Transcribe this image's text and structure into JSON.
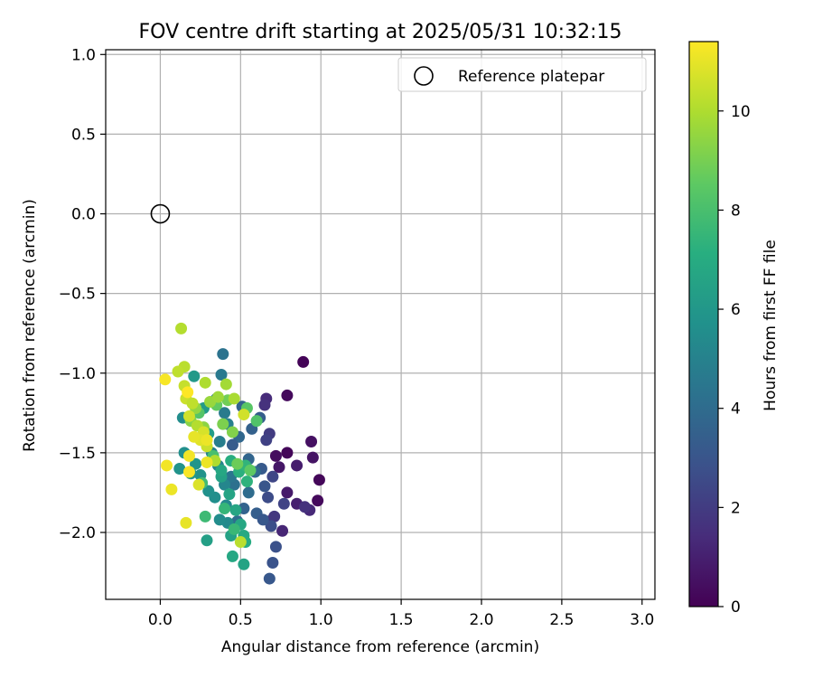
{
  "chart_data": {
    "type": "scatter",
    "title": "FOV centre drift starting at 2025/05/31 10:32:15",
    "xlabel": "Angular distance from reference (arcmin)",
    "ylabel": "Rotation from reference (arcmin)",
    "xlim": [
      -0.34,
      3.08
    ],
    "ylim": [
      -2.42,
      1.03
    ],
    "xticks": [
      0.0,
      0.5,
      1.0,
      1.5,
      2.0,
      2.5,
      3.0
    ],
    "xtick_labels": [
      "0.0",
      "0.5",
      "1.0",
      "1.5",
      "2.0",
      "2.5",
      "3.0"
    ],
    "yticks": [
      1.0,
      0.5,
      0.0,
      -0.5,
      -1.0,
      -1.5,
      -2.0
    ],
    "ytick_labels": [
      "1.0",
      "0.5",
      "0.0",
      "−0.5",
      "−1.0",
      "−1.5",
      "−2.0"
    ],
    "grid": true,
    "legend": {
      "location": "upper right",
      "entries": [
        "Reference platepar"
      ]
    },
    "reference_point": {
      "x": 0.0,
      "y": 0.0,
      "marker": "hollow-circle"
    },
    "colorbar": {
      "label": "Hours from first FF file",
      "colormap": "viridis",
      "range": [
        0,
        11.4
      ],
      "ticks": [
        0,
        2,
        4,
        6,
        8,
        10
      ],
      "tick_labels": [
        "0",
        "2",
        "4",
        "6",
        "8",
        "10"
      ]
    },
    "points": [
      [
        0.89,
        -0.93,
        0.1
      ],
      [
        0.79,
        -1.14,
        0.3
      ],
      [
        0.99,
        -1.67,
        0.2
      ],
      [
        0.98,
        -1.8,
        0.3
      ],
      [
        0.94,
        -1.43,
        0.5
      ],
      [
        0.95,
        -1.53,
        0.6
      ],
      [
        0.79,
        -1.5,
        0.2
      ],
      [
        0.72,
        -1.52,
        0.4
      ],
      [
        0.74,
        -1.59,
        0.7
      ],
      [
        0.85,
        -1.58,
        0.9
      ],
      [
        0.79,
        -1.75,
        0.8
      ],
      [
        0.85,
        -1.82,
        1.0
      ],
      [
        0.93,
        -1.86,
        1.3
      ],
      [
        0.9,
        -1.84,
        1.6
      ],
      [
        0.76,
        -1.99,
        1.2
      ],
      [
        0.68,
        -1.93,
        1.5
      ],
      [
        0.71,
        -1.9,
        1.8
      ],
      [
        0.66,
        -1.16,
        1.4
      ],
      [
        0.65,
        -1.2,
        1.6
      ],
      [
        0.68,
        -1.38,
        2.0
      ],
      [
        0.66,
        -1.42,
        2.2
      ],
      [
        0.7,
        -1.65,
        2.4
      ],
      [
        0.67,
        -1.78,
        2.6
      ],
      [
        0.72,
        -2.09,
        2.8
      ],
      [
        0.7,
        -2.19,
        2.9
      ],
      [
        0.68,
        -2.29,
        3.1
      ],
      [
        0.69,
        -1.96,
        2.7
      ],
      [
        0.77,
        -1.82,
        2.3
      ],
      [
        0.65,
        -1.71,
        3.0
      ],
      [
        0.63,
        -1.6,
        3.2
      ],
      [
        0.62,
        -1.28,
        3.4
      ],
      [
        0.57,
        -1.35,
        3.5
      ],
      [
        0.51,
        -1.21,
        3.6
      ],
      [
        0.49,
        -1.4,
        3.8
      ],
      [
        0.45,
        -1.45,
        3.3
      ],
      [
        0.55,
        -1.54,
        3.7
      ],
      [
        0.59,
        -1.62,
        3.9
      ],
      [
        0.55,
        -1.75,
        4.0
      ],
      [
        0.52,
        -1.85,
        3.6
      ],
      [
        0.6,
        -1.88,
        3.4
      ],
      [
        0.64,
        -1.92,
        3.1
      ],
      [
        0.48,
        -1.93,
        4.1
      ],
      [
        0.46,
        -1.7,
        4.2
      ],
      [
        0.44,
        -1.65,
        4.4
      ],
      [
        0.39,
        -0.88,
        4.3
      ],
      [
        0.38,
        -1.01,
        4.6
      ],
      [
        0.35,
        -1.16,
        4.5
      ],
      [
        0.4,
        -1.25,
        4.7
      ],
      [
        0.42,
        -1.32,
        4.9
      ],
      [
        0.37,
        -1.43,
        4.8
      ],
      [
        0.32,
        -1.5,
        5.0
      ],
      [
        0.36,
        -1.58,
        5.1
      ],
      [
        0.4,
        -1.7,
        5.2
      ],
      [
        0.41,
        -1.83,
        5.3
      ],
      [
        0.42,
        -1.94,
        5.4
      ],
      [
        0.37,
        -1.92,
        5.5
      ],
      [
        0.34,
        -1.78,
        5.6
      ],
      [
        0.3,
        -1.74,
        5.7
      ],
      [
        0.25,
        -1.64,
        5.8
      ],
      [
        0.22,
        -1.57,
        5.9
      ],
      [
        0.19,
        -1.63,
        6.0
      ],
      [
        0.15,
        -1.5,
        5.6
      ],
      [
        0.12,
        -1.6,
        5.8
      ],
      [
        0.14,
        -1.28,
        5.5
      ],
      [
        0.21,
        -1.02,
        6.1
      ],
      [
        0.27,
        -1.22,
        6.2
      ],
      [
        0.3,
        -1.38,
        6.3
      ],
      [
        0.33,
        -1.53,
        6.4
      ],
      [
        0.38,
        -1.65,
        6.5
      ],
      [
        0.43,
        -1.76,
        6.6
      ],
      [
        0.47,
        -1.86,
        6.7
      ],
      [
        0.5,
        -1.95,
        6.8
      ],
      [
        0.52,
        -2.02,
        6.9
      ],
      [
        0.53,
        -2.06,
        7.0
      ],
      [
        0.45,
        -2.15,
        6.8
      ],
      [
        0.52,
        -2.2,
        6.6
      ],
      [
        0.44,
        -2.02,
        6.5
      ],
      [
        0.38,
        -1.61,
        6.8
      ],
      [
        0.44,
        -1.55,
        7.1
      ],
      [
        0.49,
        -1.62,
        7.2
      ],
      [
        0.54,
        -1.68,
        7.3
      ],
      [
        0.53,
        -1.58,
        7.4
      ],
      [
        0.4,
        -1.85,
        7.5
      ],
      [
        0.46,
        -1.98,
        7.6
      ],
      [
        0.29,
        -2.05,
        6.4
      ],
      [
        0.28,
        -1.9,
        7.7
      ],
      [
        0.26,
        -1.69,
        7.8
      ],
      [
        0.33,
        -1.52,
        8.0
      ],
      [
        0.6,
        -1.3,
        8.2
      ],
      [
        0.54,
        -1.22,
        8.4
      ],
      [
        0.56,
        -1.61,
        8.5
      ],
      [
        0.48,
        -1.57,
        8.8
      ],
      [
        0.35,
        -1.2,
        8.6
      ],
      [
        0.24,
        -1.25,
        8.3
      ],
      [
        0.42,
        -1.17,
        8.9
      ],
      [
        0.39,
        -1.32,
        9.1
      ],
      [
        0.45,
        -1.37,
        9.2
      ],
      [
        0.19,
        -1.3,
        9.3
      ],
      [
        0.22,
        -1.22,
        9.5
      ],
      [
        0.27,
        -1.34,
        9.4
      ],
      [
        0.31,
        -1.18,
        9.6
      ],
      [
        0.36,
        -1.15,
        9.7
      ],
      [
        0.41,
        -1.07,
        9.8
      ],
      [
        0.46,
        -1.16,
        9.9
      ],
      [
        0.28,
        -1.06,
        10.0
      ],
      [
        0.13,
        -0.72,
        10.1
      ],
      [
        0.15,
        -0.96,
        10.2
      ],
      [
        0.11,
        -0.99,
        10.3
      ],
      [
        0.15,
        -1.08,
        10.4
      ],
      [
        0.16,
        -1.16,
        10.5
      ],
      [
        0.18,
        -1.27,
        10.6
      ],
      [
        0.2,
        -1.19,
        10.3
      ],
      [
        0.23,
        -1.33,
        10.1
      ],
      [
        0.27,
        -1.37,
        10.7
      ],
      [
        0.29,
        -1.46,
        10.5
      ],
      [
        0.34,
        -1.55,
        10.0
      ],
      [
        0.5,
        -2.06,
        10.2
      ],
      [
        0.52,
        -1.26,
        10.6
      ],
      [
        0.25,
        -1.42,
        10.9
      ],
      [
        0.21,
        -1.4,
        11.0
      ],
      [
        0.29,
        -1.42,
        11.1
      ],
      [
        0.18,
        -1.52,
        11.2
      ],
      [
        0.29,
        -1.56,
        11.1
      ],
      [
        0.03,
        -1.04,
        11.3
      ],
      [
        0.04,
        -1.58,
        11.2
      ],
      [
        0.07,
        -1.73,
        11.1
      ],
      [
        0.16,
        -1.94,
        11.0
      ],
      [
        0.18,
        -1.62,
        11.3
      ],
      [
        0.24,
        -1.7,
        10.8
      ],
      [
        0.17,
        -1.12,
        11.4
      ]
    ]
  }
}
